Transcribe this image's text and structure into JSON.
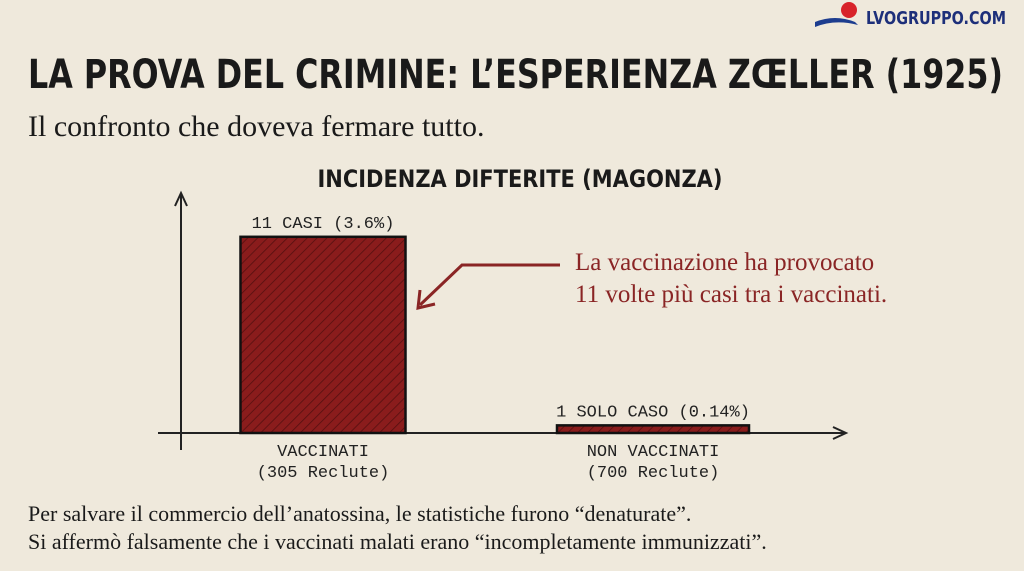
{
  "header": {
    "logo": "LVOGRUPPO.COM",
    "title": "LA PROVA DEL CRIMINE: L’ESPERIENZA ZŒLLER (1925)",
    "subtitle": "Il confronto che doveva fermare tutto."
  },
  "chart_data": {
    "type": "bar",
    "title": "INCIDENZA DIFTERITE (MAGONZA)",
    "categories": [
      "VACCINATI",
      "NON VACCINATI"
    ],
    "category_notes": [
      "(305 Reclute)",
      "(700 Reclute)"
    ],
    "values": [
      3.6,
      0.14
    ],
    "value_labels": [
      "11 CASI (3.6%)",
      "1 SOLO CASO (0.14%)"
    ],
    "color": "#8a1c1c",
    "ylim": [
      0,
      4
    ],
    "annotation": [
      "La vaccinazione ha provocato",
      "11 volte più casi tra i vaccinati."
    ]
  },
  "footer": [
    "Per salvare il commercio dell’anatossina, le statistiche furono “denaturate”.",
    "Si affermò falsamente che i vaccinati malati erano “incompletamente immunizzati”."
  ]
}
